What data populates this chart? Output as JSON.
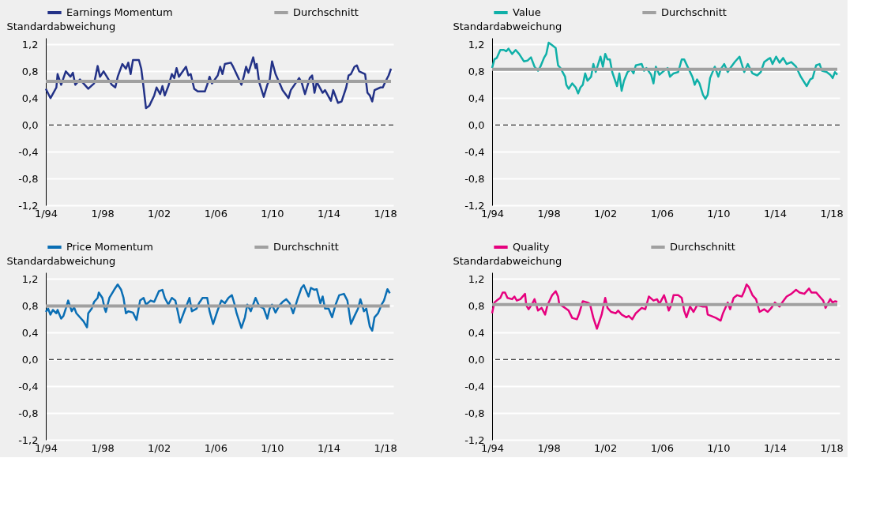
{
  "chart_data": [
    {
      "type": "line",
      "ylabel": "Standardabweichung",
      "legend": "top left",
      "grid": "y",
      "xlim": [
        "1994-01",
        "2018-08"
      ],
      "ylim": [
        -1.2,
        1.3
      ],
      "xticks": [
        {
          "value": "1994-01",
          "label": "1/94"
        },
        {
          "value": "1998-01",
          "label": "1/98"
        },
        {
          "value": "2002-01",
          "label": "1/02"
        },
        {
          "value": "2006-01",
          "label": "1/06"
        },
        {
          "value": "2010-01",
          "label": "1/10"
        },
        {
          "value": "2014-01",
          "label": "1/14"
        },
        {
          "value": "2018-01",
          "label": "1/18"
        }
      ],
      "yticks": [
        {
          "value": -1.2,
          "label": "-1,2"
        },
        {
          "value": -0.8,
          "label": "-0,8"
        },
        {
          "value": -0.4,
          "label": "-0,4"
        },
        {
          "value": 0,
          "label": "0,0"
        },
        {
          "value": 0.4,
          "label": "0,4"
        },
        {
          "value": 0.8,
          "label": "0,8"
        },
        {
          "value": 1.2,
          "label": "1,2"
        }
      ],
      "ref_lines": [
        {
          "axis": "y",
          "value": 0,
          "color": "#000000",
          "line_style": "dashed"
        }
      ],
      "series": [
        {
          "name": "Earnings Momentum",
          "color": "#233287",
          "x": [
            "1994-01",
            "1994-05",
            "1994-10",
            "1994-11",
            "1995-02",
            "1995-06",
            "1995-10",
            "1995-12",
            "1996-02",
            "1996-06",
            "1997-01",
            "1997-06",
            "1997-09",
            "1997-11",
            "1998-02",
            "1998-09",
            "1998-12",
            "1999-02",
            "1999-06",
            "1999-09",
            "1999-11",
            "2000-01",
            "2000-03",
            "2000-08",
            "2000-10",
            "2000-12",
            "2001-02",
            "2001-05",
            "2001-09",
            "2001-11",
            "2002-02",
            "2002-04",
            "2002-06",
            "2002-09",
            "2002-12",
            "2003-02",
            "2003-04",
            "2003-06",
            "2003-12",
            "2004-02",
            "2004-04",
            "2004-07",
            "2004-10",
            "2005-04",
            "2005-06",
            "2005-08",
            "2005-10",
            "2006-03",
            "2006-05",
            "2006-07",
            "2006-09",
            "2007-02",
            "2007-04",
            "2007-09",
            "2007-11",
            "2008-01",
            "2008-03",
            "2008-05",
            "2008-09",
            "2008-11",
            "2008-12",
            "2009-02",
            "2009-06",
            "2009-09",
            "2009-11",
            "2010-01",
            "2010-04",
            "2010-08",
            "2010-10",
            "2011-03",
            "2011-05",
            "2011-12",
            "2012-02",
            "2012-05",
            "2012-09",
            "2012-11",
            "2013-01",
            "2013-03",
            "2013-08",
            "2013-10",
            "2014-03",
            "2014-05",
            "2014-09",
            "2014-12",
            "2015-04",
            "2015-06",
            "2015-08",
            "2015-11",
            "2016-01",
            "2016-03",
            "2016-08",
            "2016-10",
            "2016-12",
            "2017-02",
            "2017-04",
            "2017-09",
            "2017-11",
            "2018-01",
            "2018-04",
            "2018-06"
          ],
          "values": [
            0.54,
            0.4,
            0.56,
            0.76,
            0.6,
            0.8,
            0.72,
            0.78,
            0.6,
            0.68,
            0.54,
            0.62,
            0.88,
            0.72,
            0.8,
            0.6,
            0.56,
            0.72,
            0.91,
            0.84,
            0.93,
            0.76,
            0.97,
            0.97,
            0.84,
            0.56,
            0.25,
            0.29,
            0.44,
            0.56,
            0.46,
            0.58,
            0.44,
            0.58,
            0.76,
            0.7,
            0.85,
            0.72,
            0.87,
            0.74,
            0.76,
            0.54,
            0.5,
            0.5,
            0.6,
            0.72,
            0.62,
            0.74,
            0.87,
            0.76,
            0.91,
            0.93,
            0.87,
            0.68,
            0.6,
            0.72,
            0.87,
            0.78,
            1.01,
            0.85,
            0.91,
            0.64,
            0.42,
            0.6,
            0.68,
            0.95,
            0.76,
            0.6,
            0.52,
            0.4,
            0.52,
            0.7,
            0.64,
            0.46,
            0.7,
            0.74,
            0.48,
            0.64,
            0.48,
            0.52,
            0.36,
            0.52,
            0.33,
            0.35,
            0.56,
            0.74,
            0.76,
            0.87,
            0.89,
            0.8,
            0.76,
            0.48,
            0.44,
            0.35,
            0.52,
            0.56,
            0.56,
            0.64,
            0.74,
            0.84
          ]
        },
        {
          "name": "Durchschnitt",
          "color": "#a0a0a0",
          "x": [
            "1994-01",
            "2018-06"
          ],
          "values": [
            0.65,
            0.65
          ]
        }
      ]
    },
    {
      "type": "line",
      "ylabel": "Standardabweichung",
      "legend": "top left",
      "grid": "y",
      "xlim": [
        "1994-01",
        "2018-08"
      ],
      "ylim": [
        -1.2,
        1.3
      ],
      "xticks": [
        {
          "value": "1994-01",
          "label": "1/94"
        },
        {
          "value": "1998-01",
          "label": "1/98"
        },
        {
          "value": "2002-01",
          "label": "1/02"
        },
        {
          "value": "2006-01",
          "label": "1/06"
        },
        {
          "value": "2010-01",
          "label": "1/10"
        },
        {
          "value": "2014-01",
          "label": "1/14"
        },
        {
          "value": "2018-01",
          "label": "1/18"
        }
      ],
      "yticks": [
        {
          "value": -1.2,
          "label": "-1,2"
        },
        {
          "value": -0.8,
          "label": "-0,8"
        },
        {
          "value": -0.4,
          "label": "-0,4"
        },
        {
          "value": 0,
          "label": "0,0"
        },
        {
          "value": 0.4,
          "label": "0,4"
        },
        {
          "value": 0.8,
          "label": "0,8"
        },
        {
          "value": 1.2,
          "label": "1,2"
        }
      ],
      "ref_lines": [
        {
          "axis": "y",
          "value": 0,
          "color": "#000000",
          "line_style": "dashed"
        }
      ],
      "series": [
        {
          "name": "Value",
          "color": "#10b0a8",
          "x": [
            "1994-01",
            "1994-03",
            "1994-05",
            "1994-08",
            "1994-11",
            "1995-01",
            "1995-03",
            "1995-06",
            "1995-09",
            "1995-12",
            "1996-04",
            "1996-07",
            "1996-10",
            "1997-01",
            "1997-04",
            "1997-06",
            "1997-09",
            "1997-11",
            "1998-01",
            "1998-04",
            "1998-07",
            "1998-09",
            "1998-11",
            "1999-03",
            "1999-04",
            "1999-06",
            "1999-09",
            "1999-12",
            "2000-02",
            "2000-04",
            "2000-06",
            "2000-08",
            "2000-10",
            "2001-01",
            "2001-03",
            "2001-05",
            "2001-09",
            "2001-11",
            "2002-01",
            "2002-03",
            "2002-05",
            "2002-07",
            "2002-11",
            "2003-01",
            "2003-03",
            "2003-05",
            "2003-08",
            "2003-11",
            "2004-01",
            "2004-03",
            "2004-08",
            "2004-10",
            "2004-12",
            "2005-04",
            "2005-06",
            "2005-08",
            "2005-11",
            "2006-03",
            "2006-06",
            "2006-08",
            "2006-11",
            "2007-03",
            "2007-06",
            "2007-08",
            "2007-12",
            "2008-03",
            "2008-05",
            "2008-07",
            "2008-09",
            "2008-12",
            "2009-02",
            "2009-04",
            "2009-06",
            "2009-10",
            "2010-01",
            "2010-03",
            "2010-06",
            "2010-09",
            "2010-12",
            "2011-03",
            "2011-07",
            "2011-11",
            "2012-02",
            "2012-06",
            "2012-10",
            "2013-01",
            "2013-04",
            "2013-07",
            "2013-09",
            "2013-11",
            "2014-02",
            "2014-05",
            "2014-08",
            "2014-11",
            "2015-03",
            "2015-07",
            "2015-11",
            "2016-04",
            "2016-07",
            "2016-09",
            "2016-12",
            "2017-03",
            "2017-05",
            "2017-09",
            "2017-12",
            "2018-02",
            "2018-04",
            "2018-06"
          ],
          "values": [
            0.85,
            0.98,
            1.0,
            1.12,
            1.12,
            1.1,
            1.14,
            1.06,
            1.12,
            1.06,
            0.95,
            0.96,
            1.01,
            0.87,
            0.81,
            0.87,
            1.0,
            1.06,
            1.23,
            1.19,
            1.15,
            0.89,
            0.85,
            0.72,
            0.6,
            0.54,
            0.62,
            0.56,
            0.47,
            0.56,
            0.6,
            0.77,
            0.66,
            0.72,
            0.91,
            0.79,
            1.02,
            0.87,
            1.06,
            0.98,
            0.98,
            0.79,
            0.58,
            0.77,
            0.51,
            0.66,
            0.79,
            0.83,
            0.77,
            0.89,
            0.91,
            0.81,
            0.85,
            0.75,
            0.62,
            0.87,
            0.75,
            0.81,
            0.85,
            0.72,
            0.77,
            0.79,
            0.98,
            0.98,
            0.83,
            0.72,
            0.6,
            0.68,
            0.62,
            0.45,
            0.39,
            0.45,
            0.7,
            0.87,
            0.72,
            0.83,
            0.91,
            0.79,
            0.87,
            0.94,
            1.02,
            0.79,
            0.91,
            0.77,
            0.74,
            0.79,
            0.94,
            0.98,
            1.0,
            0.91,
            1.02,
            0.93,
            1.0,
            0.91,
            0.94,
            0.87,
            0.72,
            0.58,
            0.68,
            0.7,
            0.89,
            0.91,
            0.81,
            0.79,
            0.75,
            0.7,
            0.79,
            0.75
          ]
        },
        {
          "name": "Durchschnitt",
          "color": "#a0a0a0",
          "x": [
            "1994-01",
            "2018-06"
          ],
          "values": [
            0.83,
            0.83
          ]
        }
      ]
    },
    {
      "type": "line",
      "ylabel": "Standardabweichung",
      "legend": "top left",
      "grid": "y",
      "xlim": [
        "1994-01",
        "2018-08"
      ],
      "ylim": [
        -1.2,
        1.3
      ],
      "xticks": [
        {
          "value": "1994-01",
          "label": "1/94"
        },
        {
          "value": "1998-01",
          "label": "1/98"
        },
        {
          "value": "2002-01",
          "label": "1/02"
        },
        {
          "value": "2006-01",
          "label": "1/06"
        },
        {
          "value": "2010-01",
          "label": "1/10"
        },
        {
          "value": "2014-01",
          "label": "1/14"
        },
        {
          "value": "2018-01",
          "label": "1/18"
        }
      ],
      "yticks": [
        {
          "value": -1.2,
          "label": "-1,2"
        },
        {
          "value": -0.8,
          "label": "-0,8"
        },
        {
          "value": -0.4,
          "label": "-0,4"
        },
        {
          "value": 0,
          "label": "0,0"
        },
        {
          "value": 0.4,
          "label": "0,4"
        },
        {
          "value": 0.8,
          "label": "0,8"
        },
        {
          "value": 1.2,
          "label": "1,2"
        }
      ],
      "ref_lines": [
        {
          "axis": "y",
          "value": 0,
          "color": "#000000",
          "line_style": "dashed"
        }
      ],
      "series": [
        {
          "name": "Price Momentum",
          "color": "#0a6eb4",
          "x": [
            "1994-01",
            "1994-03",
            "1994-05",
            "1994-07",
            "1994-10",
            "1994-11",
            "1995-02",
            "1995-04",
            "1995-06",
            "1995-08",
            "1995-11",
            "1996-01",
            "1996-03",
            "1996-07",
            "1996-09",
            "1996-12",
            "1997-01",
            "1997-04",
            "1997-06",
            "1997-09",
            "1997-10",
            "1998-01",
            "1998-03",
            "1998-04",
            "1998-07",
            "1998-09",
            "1998-11",
            "1999-02",
            "1999-05",
            "1999-07",
            "1999-09",
            "1999-11",
            "2000-03",
            "2000-06",
            "2000-09",
            "2000-12",
            "2001-02",
            "2001-06",
            "2001-09",
            "2002-01",
            "2002-04",
            "2002-06",
            "2002-09",
            "2002-12",
            "2003-03",
            "2003-05",
            "2003-07",
            "2003-11",
            "2004-03",
            "2004-05",
            "2004-09",
            "2004-11",
            "2005-02",
            "2005-06",
            "2005-08",
            "2005-11",
            "2006-03",
            "2006-06",
            "2006-09",
            "2006-12",
            "2007-03",
            "2007-05",
            "2007-07",
            "2007-11",
            "2008-02",
            "2008-04",
            "2008-07",
            "2008-11",
            "2009-02",
            "2009-06",
            "2009-09",
            "2009-11",
            "2010-01",
            "2010-04",
            "2010-07",
            "2010-10",
            "2011-01",
            "2011-04",
            "2011-07",
            "2011-11",
            "2012-02",
            "2012-04",
            "2012-08",
            "2012-10",
            "2013-01",
            "2013-03",
            "2013-06",
            "2013-08",
            "2013-10",
            "2014-01",
            "2014-04",
            "2014-07",
            "2014-10",
            "2015-02",
            "2015-05",
            "2015-08",
            "2015-11",
            "2016-02",
            "2016-04",
            "2016-07",
            "2016-09",
            "2016-12",
            "2017-02",
            "2017-04",
            "2017-07",
            "2017-10",
            "2017-12",
            "2018-03",
            "2018-05"
          ],
          "values": [
            0.71,
            0.76,
            0.67,
            0.74,
            0.69,
            0.74,
            0.61,
            0.65,
            0.76,
            0.88,
            0.72,
            0.78,
            0.69,
            0.61,
            0.57,
            0.48,
            0.69,
            0.76,
            0.86,
            0.92,
            1.0,
            0.92,
            0.76,
            0.71,
            0.92,
            0.98,
            1.04,
            1.12,
            1.04,
            0.92,
            0.69,
            0.72,
            0.7,
            0.59,
            0.88,
            0.92,
            0.82,
            0.88,
            0.86,
            1.02,
            1.04,
            0.92,
            0.82,
            0.92,
            0.88,
            0.72,
            0.55,
            0.74,
            0.92,
            0.72,
            0.76,
            0.84,
            0.92,
            0.92,
            0.72,
            0.53,
            0.74,
            0.88,
            0.84,
            0.92,
            0.96,
            0.84,
            0.69,
            0.47,
            0.63,
            0.82,
            0.72,
            0.92,
            0.8,
            0.76,
            0.61,
            0.76,
            0.82,
            0.7,
            0.8,
            0.86,
            0.9,
            0.84,
            0.69,
            0.92,
            1.07,
            1.11,
            0.94,
            1.07,
            1.04,
            1.05,
            0.84,
            0.94,
            0.76,
            0.76,
            0.63,
            0.82,
            0.96,
            0.98,
            0.88,
            0.53,
            0.65,
            0.76,
            0.9,
            0.72,
            0.76,
            0.49,
            0.43,
            0.63,
            0.69,
            0.82,
            0.88,
            1.05,
            0.99
          ]
        },
        {
          "name": "Durchschnitt",
          "color": "#a0a0a0",
          "x": [
            "1994-01",
            "2018-05"
          ],
          "values": [
            0.8,
            0.8
          ]
        }
      ]
    },
    {
      "type": "line",
      "ylabel": "Standardabweichung",
      "legend": "top left",
      "grid": "y",
      "xlim": [
        "1994-01",
        "2018-08"
      ],
      "ylim": [
        -1.2,
        1.3
      ],
      "xticks": [
        {
          "value": "1994-01",
          "label": "1/94"
        },
        {
          "value": "1998-01",
          "label": "1/98"
        },
        {
          "value": "2002-01",
          "label": "1/02"
        },
        {
          "value": "2006-01",
          "label": "1/06"
        },
        {
          "value": "2010-01",
          "label": "1/10"
        },
        {
          "value": "2014-01",
          "label": "1/14"
        },
        {
          "value": "2018-01",
          "label": "1/18"
        }
      ],
      "yticks": [
        {
          "value": -1.2,
          "label": "-1,2"
        },
        {
          "value": -0.8,
          "label": "-0,8"
        },
        {
          "value": -0.4,
          "label": "-0,4"
        },
        {
          "value": 0,
          "label": "0,0"
        },
        {
          "value": 0.4,
          "label": "0,4"
        },
        {
          "value": 0.8,
          "label": "0,8"
        },
        {
          "value": 1.2,
          "label": "1,2"
        }
      ],
      "ref_lines": [
        {
          "axis": "y",
          "value": 0,
          "color": "#000000",
          "line_style": "dashed"
        }
      ],
      "series": [
        {
          "name": "Quality",
          "color": "#e6007e",
          "x": [
            "1994-01",
            "1994-03",
            "1994-05",
            "1994-08",
            "1994-10",
            "1994-12",
            "1995-02",
            "1995-06",
            "1995-08",
            "1995-10",
            "1996-01",
            "1996-05",
            "1996-06",
            "1996-08",
            "1996-11",
            "1997-01",
            "1997-04",
            "1997-07",
            "1997-10",
            "1997-12",
            "1998-04",
            "1998-07",
            "1998-09",
            "1998-10",
            "1999-03",
            "1999-06",
            "1999-09",
            "2000-01",
            "2000-03",
            "2000-06",
            "2000-10",
            "2000-12",
            "2001-03",
            "2001-06",
            "2001-10",
            "2002-01",
            "2002-03",
            "2002-06",
            "2002-10",
            "2002-12",
            "2003-03",
            "2003-07",
            "2003-09",
            "2003-12",
            "2004-03",
            "2004-08",
            "2004-11",
            "2005-02",
            "2005-06",
            "2005-09",
            "2005-11",
            "2006-03",
            "2006-05",
            "2006-07",
            "2006-09",
            "2006-11",
            "2007-03",
            "2007-06",
            "2007-08",
            "2007-10",
            "2008-01",
            "2008-04",
            "2008-07",
            "2008-12",
            "2009-03",
            "2009-04",
            "2009-07",
            "2009-11",
            "2010-03",
            "2010-05",
            "2010-09",
            "2010-11",
            "2011-02",
            "2011-05",
            "2011-09",
            "2011-11",
            "2012-01",
            "2012-03",
            "2012-06",
            "2012-09",
            "2012-12",
            "2013-04",
            "2013-07",
            "2013-10",
            "2014-01",
            "2014-05",
            "2014-08",
            "2014-11",
            "2015-03",
            "2015-07",
            "2015-10",
            "2016-02",
            "2016-06",
            "2016-08",
            "2016-12",
            "2017-03",
            "2017-06",
            "2017-08",
            "2017-12",
            "2018-02",
            "2018-04",
            "2018-06"
          ],
          "values": [
            0.69,
            0.85,
            0.88,
            0.92,
            1.0,
            1.0,
            0.92,
            0.9,
            0.94,
            0.88,
            0.9,
            0.98,
            0.81,
            0.75,
            0.83,
            0.9,
            0.73,
            0.77,
            0.67,
            0.81,
            0.96,
            1.02,
            0.94,
            0.83,
            0.77,
            0.73,
            0.62,
            0.6,
            0.69,
            0.87,
            0.85,
            0.83,
            0.62,
            0.46,
            0.67,
            0.92,
            0.77,
            0.71,
            0.69,
            0.73,
            0.67,
            0.63,
            0.65,
            0.6,
            0.69,
            0.77,
            0.75,
            0.94,
            0.88,
            0.9,
            0.83,
            0.96,
            0.85,
            0.73,
            0.81,
            0.96,
            0.96,
            0.92,
            0.73,
            0.63,
            0.79,
            0.71,
            0.81,
            0.79,
            0.79,
            0.67,
            0.65,
            0.62,
            0.58,
            0.69,
            0.85,
            0.75,
            0.92,
            0.96,
            0.94,
            1.02,
            1.12,
            1.08,
            0.96,
            0.9,
            0.71,
            0.75,
            0.71,
            0.77,
            0.85,
            0.79,
            0.87,
            0.94,
            0.98,
            1.04,
            1.0,
            0.98,
            1.06,
            1.0,
            1.0,
            0.94,
            0.88,
            0.77,
            0.9,
            0.85,
            0.87,
            0.86
          ]
        },
        {
          "name": "Durchschnitt",
          "color": "#a0a0a0",
          "x": [
            "1994-01",
            "2018-06"
          ],
          "values": [
            0.82,
            0.82
          ]
        }
      ]
    }
  ]
}
